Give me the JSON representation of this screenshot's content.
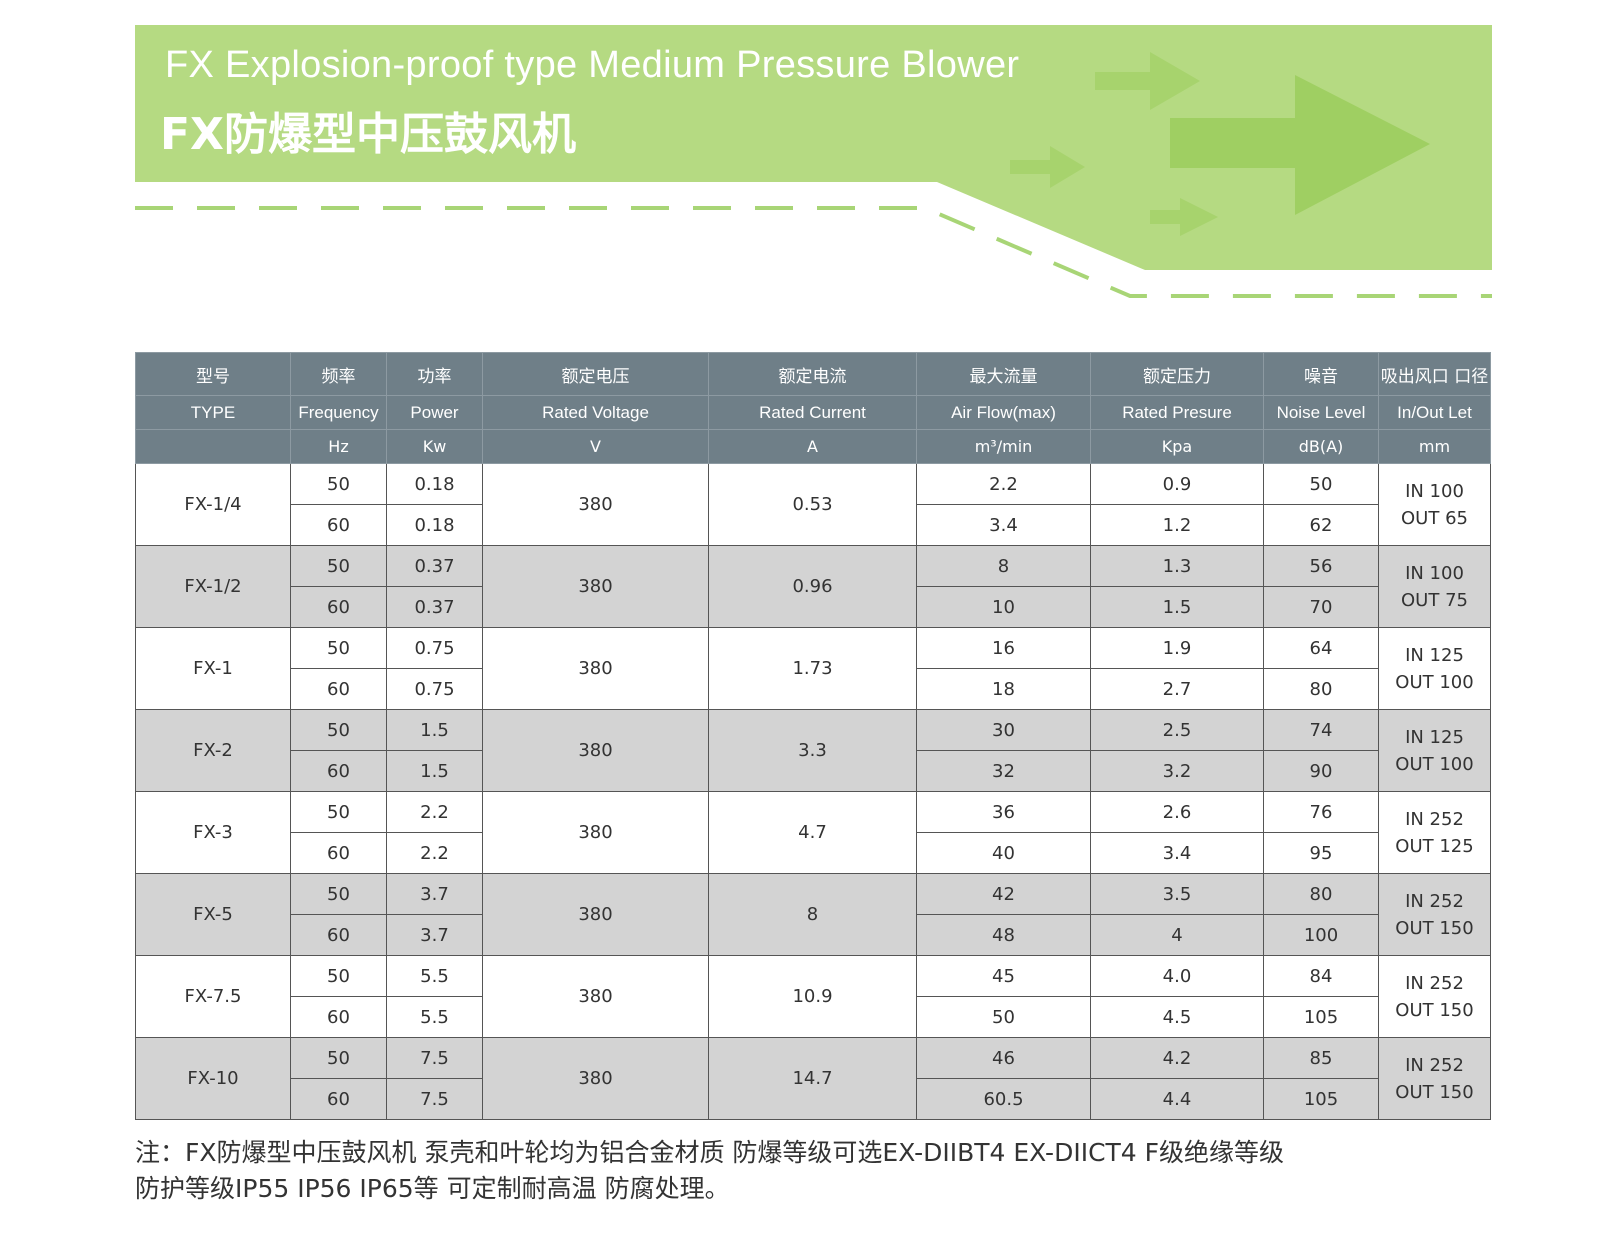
{
  "colors": {
    "banner_green": "#b5da82",
    "arrow_green": "#9fcf62",
    "dash_green": "#a8d576",
    "header_grey": "#6f7f88",
    "band_grey": "#d3d3d3"
  },
  "banner": {
    "title_en": "FX Explosion-proof type Medium Pressure Blower",
    "title_cn": "FX防爆型中压鼓风机"
  },
  "table": {
    "header_cn": [
      "型号",
      "频率",
      "功率",
      "额定电压",
      "额定电流",
      "最大流量",
      "额定压力",
      "噪音",
      "吸出风口 口径"
    ],
    "header_en": [
      "TYPE",
      "Frequency",
      "Power",
      "Rated Voltage",
      "Rated Current",
      "Air Flow(max)",
      "Rated Presure",
      "Noise Level",
      "In/Out Let"
    ],
    "header_unit": [
      "",
      "Hz",
      "Kw",
      "V",
      "A",
      "m³/min",
      "Kpa",
      "dB(A)",
      "mm"
    ],
    "models": [
      {
        "type": "FX-1/4",
        "voltage": "380",
        "current": "0.53",
        "in": "IN 100",
        "out": "OUT 65",
        "rows": [
          {
            "freq": "50",
            "power": "0.18",
            "flow": "2.2",
            "pressure": "0.9",
            "noise": "50"
          },
          {
            "freq": "60",
            "power": "0.18",
            "flow": "3.4",
            "pressure": "1.2",
            "noise": "62"
          }
        ]
      },
      {
        "type": "FX-1/2",
        "voltage": "380",
        "current": "0.96",
        "in": "IN 100",
        "out": "OUT 75",
        "rows": [
          {
            "freq": "50",
            "power": "0.37",
            "flow": "8",
            "pressure": "1.3",
            "noise": "56"
          },
          {
            "freq": "60",
            "power": "0.37",
            "flow": "10",
            "pressure": "1.5",
            "noise": "70"
          }
        ]
      },
      {
        "type": "FX-1",
        "voltage": "380",
        "current": "1.73",
        "in": "IN 125",
        "out": "OUT 100",
        "rows": [
          {
            "freq": "50",
            "power": "0.75",
            "flow": "16",
            "pressure": "1.9",
            "noise": "64"
          },
          {
            "freq": "60",
            "power": "0.75",
            "flow": "18",
            "pressure": "2.7",
            "noise": "80"
          }
        ]
      },
      {
        "type": "FX-2",
        "voltage": "380",
        "current": "3.3",
        "in": "IN 125",
        "out": "OUT 100",
        "rows": [
          {
            "freq": "50",
            "power": "1.5",
            "flow": "30",
            "pressure": "2.5",
            "noise": "74"
          },
          {
            "freq": "60",
            "power": "1.5",
            "flow": "32",
            "pressure": "3.2",
            "noise": "90"
          }
        ]
      },
      {
        "type": "FX-3",
        "voltage": "380",
        "current": "4.7",
        "in": "IN 252",
        "out": "OUT 125",
        "rows": [
          {
            "freq": "50",
            "power": "2.2",
            "flow": "36",
            "pressure": "2.6",
            "noise": "76"
          },
          {
            "freq": "60",
            "power": "2.2",
            "flow": "40",
            "pressure": "3.4",
            "noise": "95"
          }
        ]
      },
      {
        "type": "FX-5",
        "voltage": "380",
        "current": "8",
        "in": "IN 252",
        "out": "OUT 150",
        "rows": [
          {
            "freq": "50",
            "power": "3.7",
            "flow": "42",
            "pressure": "3.5",
            "noise": "80"
          },
          {
            "freq": "60",
            "power": "3.7",
            "flow": "48",
            "pressure": "4",
            "noise": "100"
          }
        ]
      },
      {
        "type": "FX-7.5",
        "voltage": "380",
        "current": "10.9",
        "in": "IN 252",
        "out": "OUT 150",
        "rows": [
          {
            "freq": "50",
            "power": "5.5",
            "flow": "45",
            "pressure": "4.0",
            "noise": "84"
          },
          {
            "freq": "60",
            "power": "5.5",
            "flow": "50",
            "pressure": "4.5",
            "noise": "105"
          }
        ]
      },
      {
        "type": "FX-10",
        "voltage": "380",
        "current": "14.7",
        "in": "IN 252",
        "out": "OUT 150",
        "rows": [
          {
            "freq": "50",
            "power": "7.5",
            "flow": "46",
            "pressure": "4.2",
            "noise": "85"
          },
          {
            "freq": "60",
            "power": "7.5",
            "flow": "60.5",
            "pressure": "4.4",
            "noise": "105"
          }
        ]
      }
    ]
  },
  "note": {
    "line1": "注：FX防爆型中压鼓风机 泵壳和叶轮均为铝合金材质 防爆等级可选EX-DIIBT4 EX-DIICT4  F级绝缘等级",
    "line2": "防护等级IP55 IP56  IP65等 可定制耐高温 防腐处理。"
  }
}
